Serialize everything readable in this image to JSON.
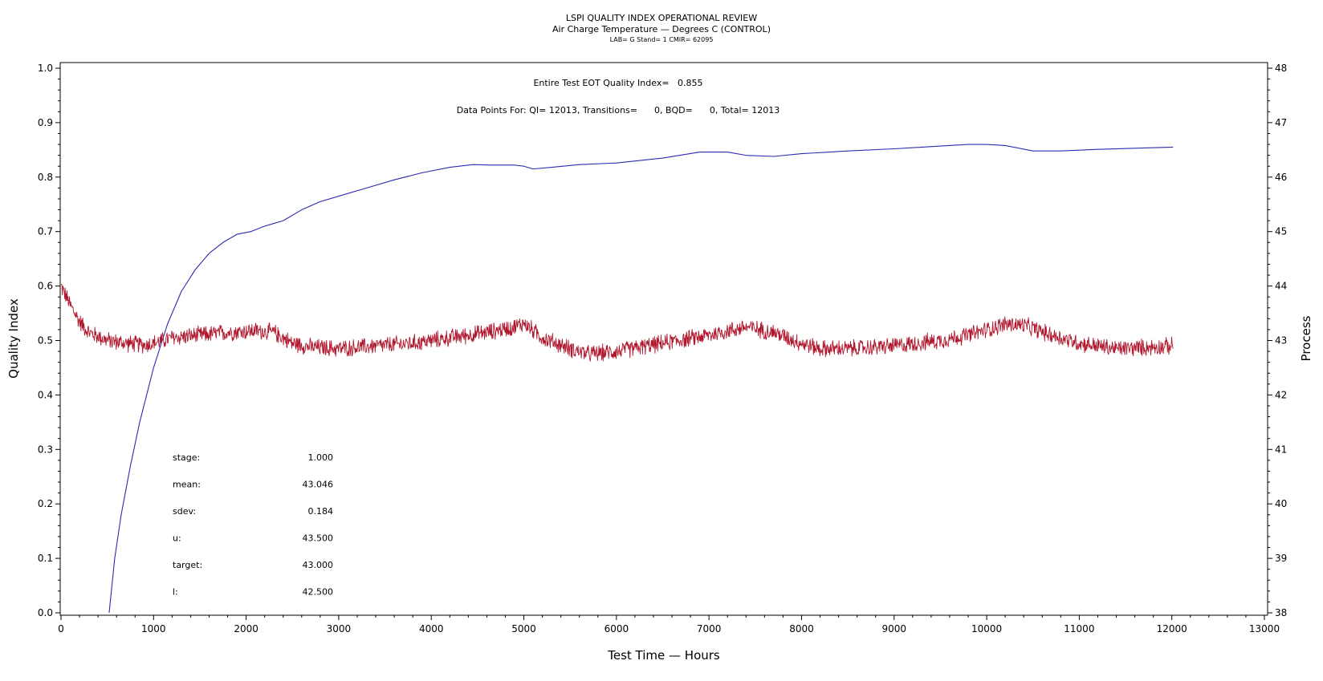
{
  "chart_data": {
    "type": "line",
    "title": "LSPI QUALITY INDEX OPERATIONAL REVIEW",
    "subtitle": "Air Charge Temperature — Degrees C (CONTROL)",
    "subtitle2": "LAB= G Stand= 1 CMIR= 62095",
    "xlabel": "Test Time — Hours",
    "ylabel": "Quality Index",
    "ylabel_right": "Process",
    "xlim": [
      0,
      13000
    ],
    "ylim": [
      0.0,
      1.0
    ],
    "ylim_right": [
      38,
      48
    ],
    "x_ticks": [
      "0",
      "1000",
      "2000",
      "3000",
      "4000",
      "5000",
      "6000",
      "7000",
      "8000",
      "9000",
      "10000",
      "11000",
      "12000",
      "13000"
    ],
    "y_ticks": [
      "0.0",
      "0.1",
      "0.2",
      "0.3",
      "0.4",
      "0.5",
      "0.6",
      "0.7",
      "0.8",
      "0.9",
      "1.0"
    ],
    "y_ticks_right": [
      "38",
      "39",
      "40",
      "41",
      "42",
      "43",
      "44",
      "45",
      "46",
      "47",
      "48"
    ],
    "grid": false,
    "annotations": {
      "quality_index_line": "Entire Test EOT Quality Index=   0.855",
      "data_points_line": "Data Points For: QI= 12013, Transitions=      0, BQD=      0, Total= 12013"
    },
    "stats": [
      {
        "label": "stage:",
        "value": "1.000"
      },
      {
        "label": "mean:",
        "value": "43.046"
      },
      {
        "label": "sdev:",
        "value": "0.184"
      },
      {
        "label": "u:",
        "value": "43.500"
      },
      {
        "label": "target:",
        "value": "43.000"
      },
      {
        "label": "l:",
        "value": "42.500"
      }
    ],
    "series": [
      {
        "axis": "left",
        "color": "#2b2bb0",
        "x": [
          520,
          580,
          650,
          750,
          850,
          1000,
          1150,
          1300,
          1450,
          1600,
          1750,
          1900,
          2050,
          2200,
          2400,
          2600,
          2800,
          3000,
          3300,
          3600,
          3900,
          4200,
          4450,
          4650,
          4900,
          5000,
          5100,
          5300,
          5600,
          6000,
          6500,
          6900,
          7200,
          7400,
          7700,
          8000,
          8500,
          9000,
          9500,
          9800,
          10000,
          10200,
          10500,
          10800,
          11200,
          11600,
          12013
        ],
        "y": [
          0.0,
          0.1,
          0.18,
          0.27,
          0.35,
          0.45,
          0.53,
          0.59,
          0.63,
          0.66,
          0.68,
          0.695,
          0.7,
          0.71,
          0.72,
          0.74,
          0.755,
          0.765,
          0.78,
          0.795,
          0.808,
          0.818,
          0.823,
          0.822,
          0.822,
          0.82,
          0.815,
          0.818,
          0.823,
          0.826,
          0.835,
          0.846,
          0.846,
          0.84,
          0.838,
          0.843,
          0.848,
          0.852,
          0.857,
          0.86,
          0.86,
          0.858,
          0.848,
          0.848,
          0.851,
          0.853,
          0.855
        ]
      },
      {
        "axis": "right",
        "color": "#b0182e",
        "noise_amplitude": 0.18,
        "x": [
          0,
          100,
          200,
          300,
          500,
          700,
          900,
          1000,
          1200,
          1500,
          1800,
          2100,
          2300,
          2500,
          2700,
          3000,
          3400,
          3800,
          4200,
          4600,
          4900,
          5000,
          5200,
          5500,
          5700,
          6000,
          6500,
          7000,
          7400,
          7700,
          8000,
          8200,
          8500,
          9000,
          9500,
          9800,
          10000,
          10200,
          10400,
          10700,
          11000,
          11400,
          11800,
          12013
        ],
        "y": [
          44.0,
          43.65,
          43.35,
          43.15,
          43.0,
          42.95,
          42.92,
          42.95,
          43.05,
          43.1,
          43.15,
          43.18,
          43.15,
          42.95,
          42.88,
          42.85,
          42.9,
          42.95,
          43.05,
          43.15,
          43.25,
          43.32,
          43.05,
          42.85,
          42.75,
          42.8,
          42.95,
          43.1,
          43.25,
          43.15,
          42.95,
          42.85,
          42.85,
          42.9,
          43.0,
          43.1,
          43.2,
          43.3,
          43.28,
          43.1,
          42.95,
          42.85,
          42.88,
          42.9
        ]
      }
    ]
  }
}
